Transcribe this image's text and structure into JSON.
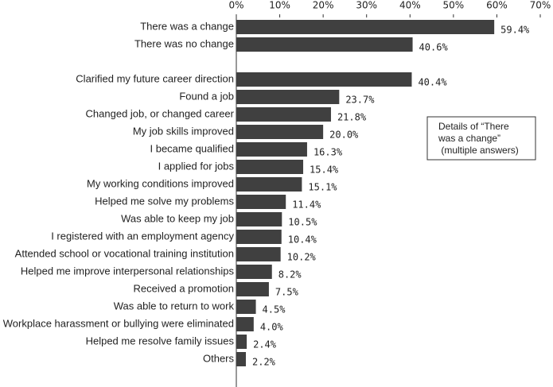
{
  "chart_data": {
    "type": "bar",
    "orientation": "horizontal",
    "categories": [
      "There was a change",
      "There was no change",
      null,
      "Clarified my future career direction",
      "Found a job",
      "Changed job, or changed career",
      "My job skills improved",
      "I became qualified",
      "I applied for jobs",
      "My working conditions improved",
      "Helped me solve my problems",
      "Was able to keep my job",
      "I registered with an employment agency",
      "Attended school or vocational training institution",
      "Helped me improve interpersonal relationships",
      "Received a promotion",
      "Was able to return to work",
      "Workplace harassment or bullying were eliminated",
      "Helped me resolve family issues",
      "Others"
    ],
    "values": [
      59.4,
      40.6,
      null,
      40.4,
      23.7,
      21.8,
      20.0,
      16.3,
      15.4,
      15.1,
      11.4,
      10.5,
      10.4,
      10.2,
      8.2,
      7.5,
      4.5,
      4.0,
      2.4,
      2.2
    ],
    "value_labels": [
      "59.4%",
      "40.6%",
      null,
      "40.4%",
      "23.7%",
      "21.8%",
      "20.0%",
      "16.3%",
      "15.4%",
      "15.1%",
      "11.4%",
      "10.5%",
      "10.4%",
      "10.2%",
      "8.2%",
      "7.5%",
      "4.5%",
      "4.0%",
      "2.4%",
      "2.2%"
    ],
    "color": "#404040",
    "xlim": [
      0,
      70
    ],
    "xticks": [
      {
        "value": 0,
        "label": "0%"
      },
      {
        "value": 10,
        "label": "10%"
      },
      {
        "value": 20,
        "label": "20%"
      },
      {
        "value": 30,
        "label": "30%"
      },
      {
        "value": 40,
        "label": "40%"
      },
      {
        "value": 50,
        "label": "50%"
      },
      {
        "value": 60,
        "label": "60%"
      },
      {
        "value": 70,
        "label": "70%"
      }
    ],
    "annotation": [
      "Details of “There",
      "was a change”",
      " (multiple answers)"
    ]
  }
}
